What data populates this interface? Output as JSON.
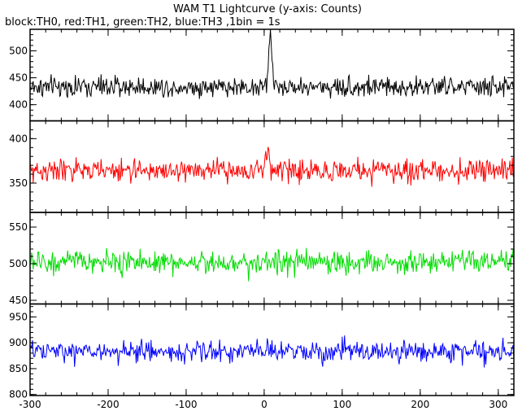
{
  "chart_data": {
    "type": "line",
    "title": "WAM T1 Lightcurve (y-axis: Counts)",
    "subtitle": "block:TH0, red:TH1, green:TH2, blue:TH3 ,1bin = 1s",
    "x": {
      "start": -300,
      "end": 320,
      "step": 1,
      "range": [
        -300,
        320
      ],
      "ticks": [
        -300,
        -200,
        -100,
        0,
        100,
        200,
        300
      ]
    },
    "panels": [
      {
        "name": "TH0",
        "color": "#000000",
        "ylim": [
          370,
          540
        ],
        "yticks": [
          400,
          450,
          500
        ],
        "baseline": 433,
        "noise": 24,
        "burst": {
          "x": 8,
          "peak": 95,
          "width": 3
        }
      },
      {
        "name": "TH1",
        "color": "#ff0000",
        "ylim": [
          317,
          420
        ],
        "yticks": [
          350,
          400
        ],
        "baseline": 364,
        "noise": 16,
        "burst": {
          "x": 5,
          "peak": 25,
          "width": 3
        }
      },
      {
        "name": "TH2",
        "color": "#00dd00",
        "ylim": [
          445,
          570
        ],
        "yticks": [
          450,
          500,
          550
        ],
        "baseline": 502,
        "noise": 20,
        "burst": null
      },
      {
        "name": "TH3",
        "color": "#0000ff",
        "ylim": [
          798,
          975
        ],
        "yticks": [
          800,
          850,
          900,
          950
        ],
        "baseline": 883,
        "noise": 26,
        "burst": null
      }
    ],
    "grid": false,
    "legend": "top-left"
  }
}
